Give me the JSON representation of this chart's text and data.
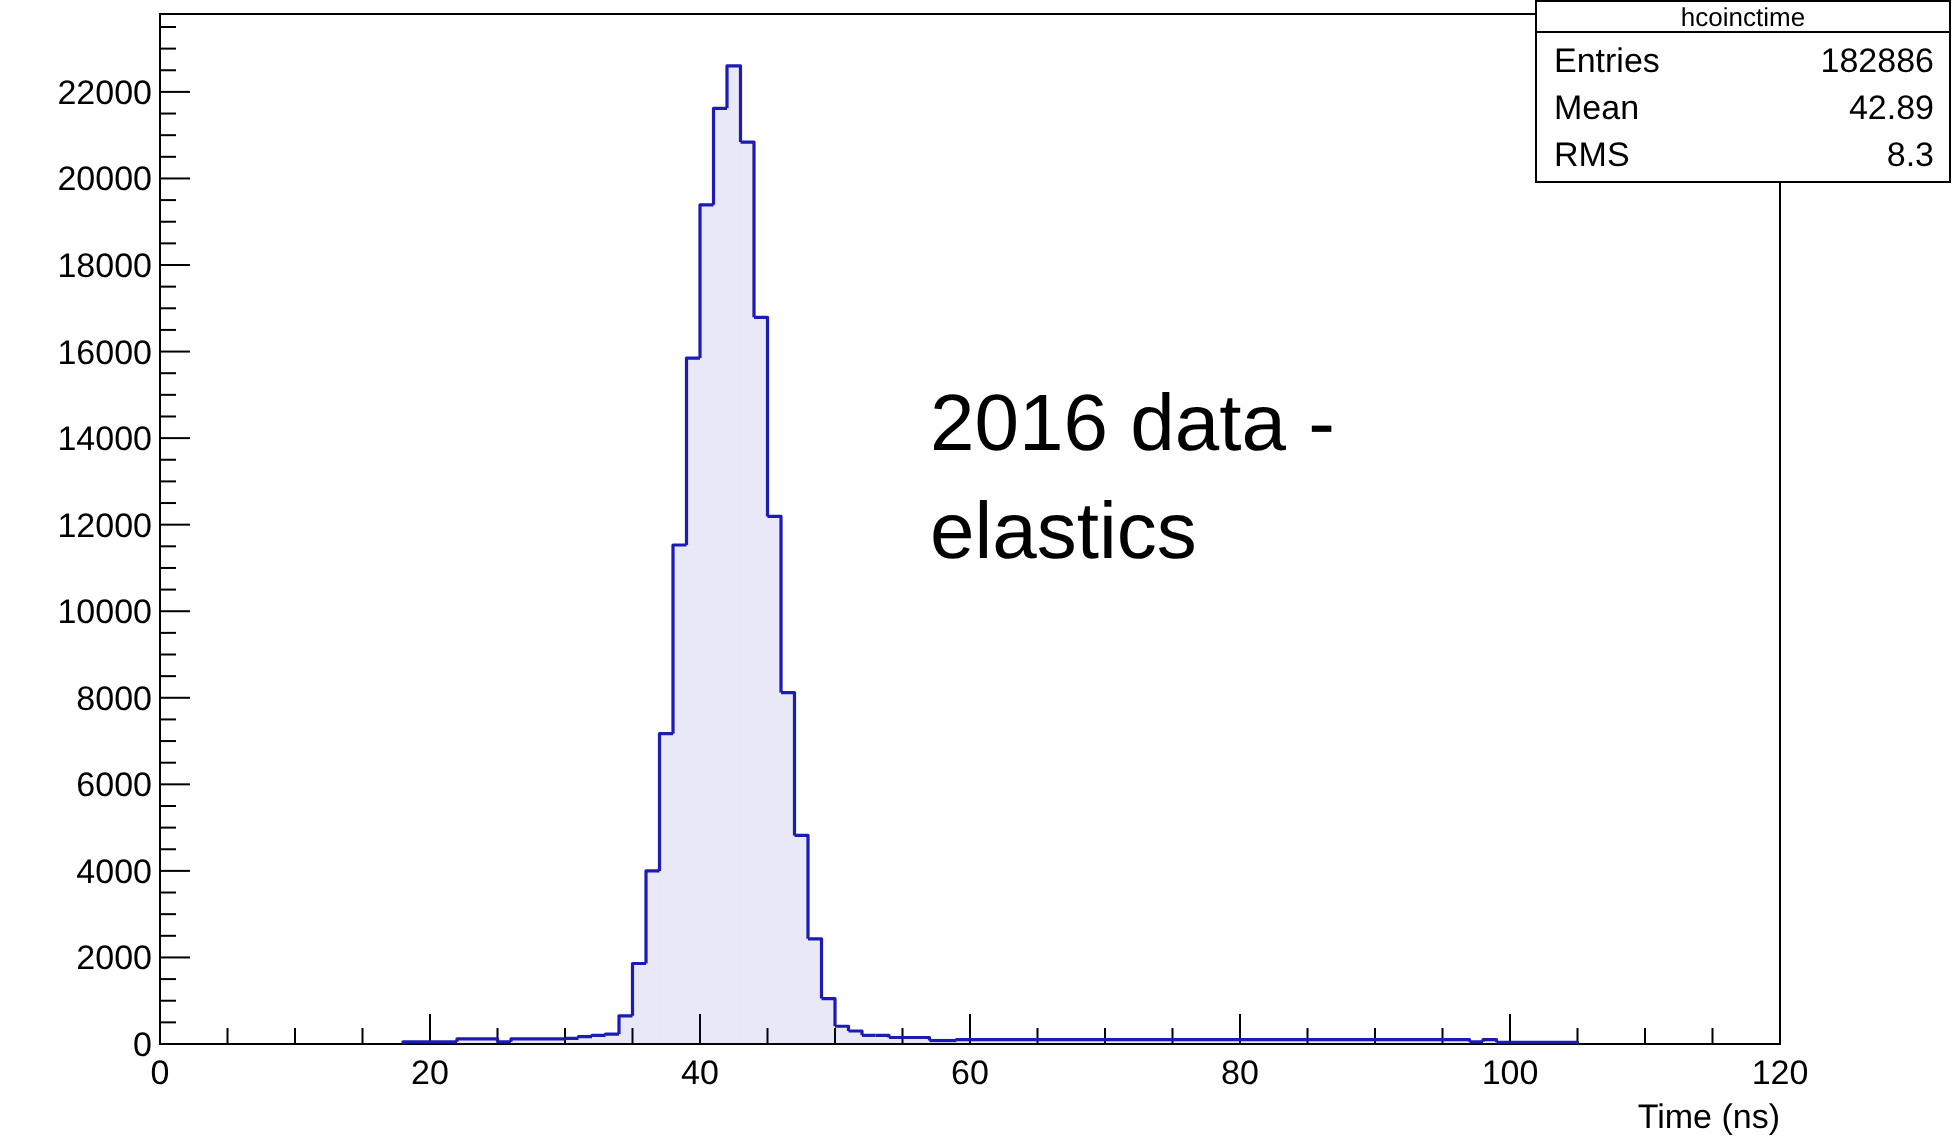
{
  "chart_data": {
    "type": "histogram",
    "xlabel": "Time (ns)",
    "color": "#1c1cb4",
    "bins": [
      18,
      22,
      25,
      26,
      30,
      31,
      32,
      33,
      34,
      35,
      36,
      37,
      38,
      39,
      40,
      41,
      42,
      43,
      44,
      45,
      46,
      47,
      48,
      49,
      50,
      51,
      52,
      53,
      54,
      57,
      59,
      97,
      98,
      99,
      105
    ],
    "values": [
      50,
      120,
      50,
      120,
      130,
      170,
      200,
      230,
      650,
      1860,
      4000,
      7170,
      11530,
      15850,
      19390,
      21620,
      22600,
      20840,
      16790,
      12190,
      8120,
      4820,
      2430,
      1050,
      410,
      300,
      200,
      200,
      150,
      80,
      100,
      50,
      100,
      40
    ],
    "xlim": [
      0,
      120
    ],
    "ylim": [
      0,
      23800
    ],
    "xticks": [
      0,
      {
        "value": 5,
        "label": null
      },
      {
        "value": 10,
        "label": null
      },
      {
        "value": 15,
        "label": null
      },
      20,
      {
        "value": 25,
        "label": null
      },
      {
        "value": 30,
        "label": null
      },
      {
        "value": 35,
        "label": null
      },
      40,
      {
        "value": 45,
        "label": null
      },
      {
        "value": 50,
        "label": null
      },
      {
        "value": 55,
        "label": null
      },
      60,
      {
        "value": 65,
        "label": null
      },
      {
        "value": 70,
        "label": null
      },
      {
        "value": 75,
        "label": null
      },
      80,
      {
        "value": 85,
        "label": null
      },
      {
        "value": 90,
        "label": null
      },
      {
        "value": 95,
        "label": null
      },
      100,
      {
        "value": 105,
        "label": null
      },
      {
        "value": 110,
        "label": null
      },
      {
        "value": 115,
        "label": null
      },
      120
    ],
    "yticks": [
      0,
      {
        "value": 500,
        "label": null
      },
      {
        "value": 1000,
        "label": null
      },
      {
        "value": 1500,
        "label": null
      },
      2000,
      {
        "value": 2500,
        "label": null
      },
      {
        "value": 3000,
        "label": null
      },
      {
        "value": 3500,
        "label": null
      },
      4000,
      {
        "value": 4500,
        "label": null
      },
      {
        "value": 5000,
        "label": null
      },
      {
        "value": 5500,
        "label": null
      },
      6000,
      {
        "value": 6500,
        "label": null
      },
      {
        "value": 7000,
        "label": null
      },
      {
        "value": 7500,
        "label": null
      },
      8000,
      {
        "value": 8500,
        "label": null
      },
      {
        "value": 9000,
        "label": null
      },
      {
        "value": 9500,
        "label": null
      },
      10000,
      {
        "value": 10500,
        "label": null
      },
      {
        "value": 11000,
        "label": null
      },
      {
        "value": 11500,
        "label": null
      },
      12000,
      {
        "value": 12500,
        "label": null
      },
      {
        "value": 13000,
        "label": null
      },
      {
        "value": 13500,
        "label": null
      },
      14000,
      {
        "value": 14500,
        "label": null
      },
      {
        "value": 15000,
        "label": null
      },
      {
        "value": 15500,
        "label": null
      },
      16000,
      {
        "value": 16500,
        "label": null
      },
      {
        "value": 17000,
        "label": null
      },
      {
        "value": 17500,
        "label": null
      },
      18000,
      {
        "value": 18500,
        "label": null
      },
      {
        "value": 19000,
        "label": null
      },
      {
        "value": 19500,
        "label": null
      },
      20000,
      {
        "value": 20500,
        "label": null
      },
      {
        "value": 21000,
        "label": null
      },
      {
        "value": 21500,
        "label": null
      },
      22000,
      {
        "value": 22500,
        "label": null
      },
      {
        "value": 23000,
        "label": null
      },
      {
        "value": 23500,
        "label": null
      }
    ],
    "grid": false,
    "annotations": [
      "2016 data - elastics",
      "hcoinctime",
      "Entries 182886",
      "Mean 42.89",
      "RMS 8.3"
    ]
  }
}
